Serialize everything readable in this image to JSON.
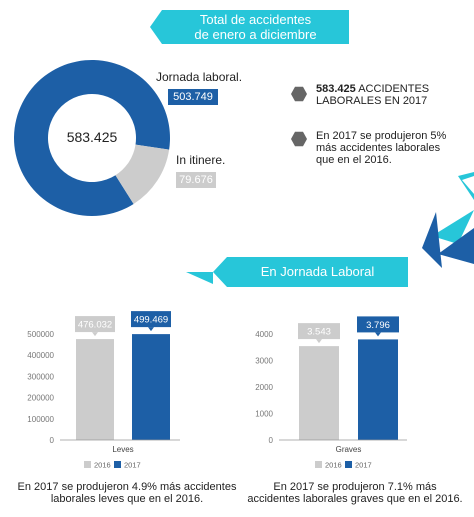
{
  "banner_total": {
    "line1": "Total de accidentes",
    "line2": "de enero a diciembre"
  },
  "donut": {
    "total": "583.425",
    "laboral_label": "Jornada laboral.",
    "laboral_value": "503.749",
    "itinere_label": "In itinere.",
    "itinere_value": "79.676"
  },
  "stats": {
    "stat1_bold": "583.425",
    "stat1_rest": " ACCIDENTES LABORALES EN 2017",
    "stat2": "En 2017 se produjeron 5% más accidentes laborales que en el 2016."
  },
  "banner_jornada": "En Jornada Laboral",
  "colors": {
    "blue": "#1d5fa6",
    "gray": "#cccccc",
    "cyan": "#27c6d9"
  },
  "chart_data": [
    {
      "type": "pie",
      "categories": [
        "Jornada laboral.",
        "In itinere."
      ],
      "values": [
        503749,
        79676
      ],
      "center_label": "583.425"
    },
    {
      "type": "bar",
      "categories": [
        "Leves"
      ],
      "series": [
        {
          "name": "2016",
          "values": [
            476032
          ],
          "label": "476.032"
        },
        {
          "name": "2017",
          "values": [
            499469
          ],
          "label": "499.469"
        }
      ],
      "ylim": [
        0,
        500000
      ],
      "yticks": [
        "0",
        "100000",
        "200000",
        "300000",
        "400000",
        "500000"
      ],
      "xlabel": "Leves",
      "legend": [
        "2016",
        "2017"
      ],
      "caption": "En 2017 se produjeron 4.9% más accidentes laborales leves que en el 2016."
    },
    {
      "type": "bar",
      "categories": [
        "Graves"
      ],
      "series": [
        {
          "name": "2016",
          "values": [
            3543
          ],
          "label": "3.543"
        },
        {
          "name": "2017",
          "values": [
            3796
          ],
          "label": "3.796"
        }
      ],
      "ylim": [
        0,
        4000
      ],
      "yticks": [
        "0",
        "1000",
        "2000",
        "3000",
        "4000"
      ],
      "xlabel": "Graves",
      "legend": [
        "2016",
        "2017"
      ],
      "caption": "En 2017 se produjeron 7.1% más accidentes laborales graves que en el 2016."
    }
  ]
}
